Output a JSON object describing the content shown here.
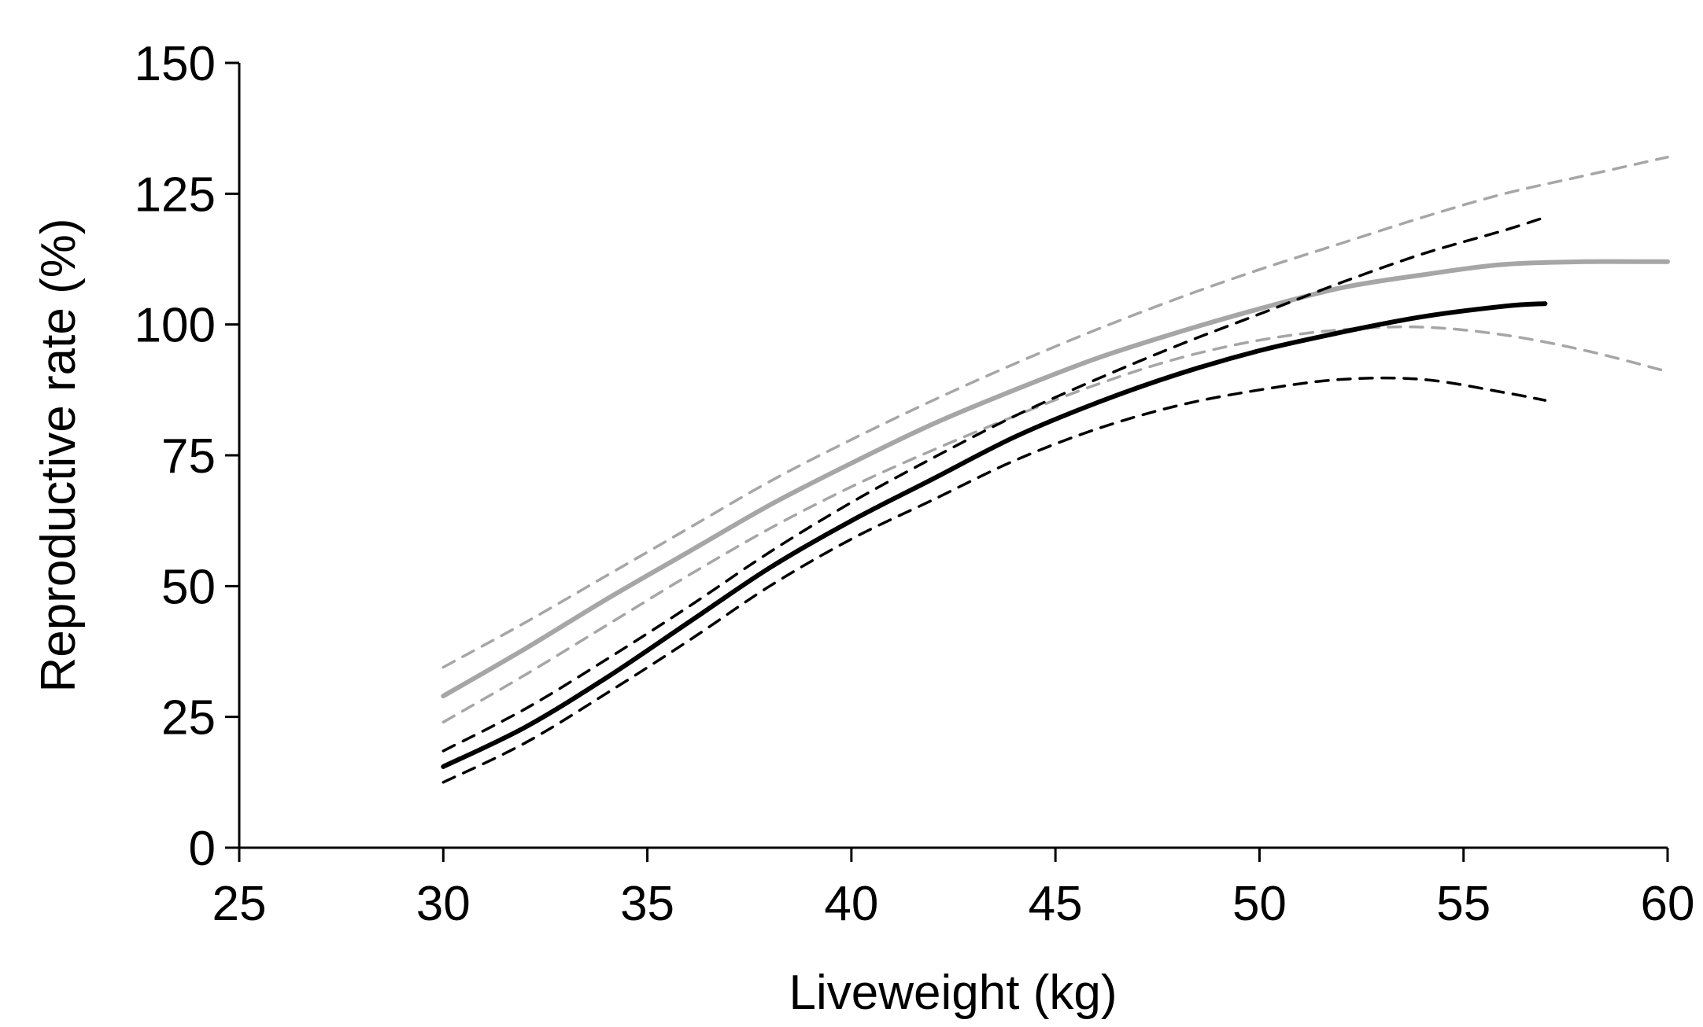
{
  "chart_data": {
    "type": "line",
    "title": "",
    "xlabel": "Liveweight  (kg)",
    "ylabel": "Reproductive rate (%)",
    "xlim": [
      25,
      60
    ],
    "ylim": [
      0,
      150
    ],
    "xticks": [
      25,
      30,
      35,
      40,
      45,
      50,
      55,
      60
    ],
    "yticks": [
      0,
      25,
      50,
      75,
      100,
      125,
      150
    ],
    "grid": false,
    "legend": "none",
    "series": [
      {
        "name": "grey-fit",
        "color": "#a6a6a6",
        "style": "solid",
        "x": [
          30,
          32,
          34,
          36,
          38,
          40,
          42,
          44,
          46,
          48,
          50,
          52,
          54,
          56,
          58,
          60
        ],
        "y": [
          29,
          38,
          47.5,
          56.5,
          65.5,
          73.5,
          81,
          87.5,
          93.5,
          98.5,
          103,
          107,
          109.5,
          111.5,
          112,
          112
        ]
      },
      {
        "name": "grey-upper-ci",
        "color": "#a6a6a6",
        "style": "dashed",
        "x": [
          30,
          32,
          34,
          36,
          38,
          40,
          42,
          44,
          46,
          48,
          50,
          52,
          54,
          56,
          58,
          60
        ],
        "y": [
          34.5,
          43,
          52,
          61,
          70,
          78,
          85.5,
          92.5,
          99,
          105,
          110.5,
          115.5,
          120.5,
          125,
          128.5,
          132
        ]
      },
      {
        "name": "grey-lower-ci",
        "color": "#a6a6a6",
        "style": "dashed",
        "x": [
          30,
          32,
          34,
          36,
          38,
          40,
          42,
          44,
          46,
          48,
          50,
          52,
          54,
          56,
          58,
          60
        ],
        "y": [
          24,
          33,
          42.5,
          52,
          61,
          69,
          76,
          82.5,
          88.5,
          93.5,
          97,
          99,
          99.5,
          98,
          95,
          91
        ]
      },
      {
        "name": "black-fit",
        "color": "#000000",
        "style": "solid",
        "x": [
          30,
          32,
          34,
          36,
          38,
          40,
          42,
          44,
          46,
          48,
          50,
          52,
          54,
          56,
          57
        ],
        "y": [
          15.5,
          23,
          32.5,
          43,
          53.5,
          62.5,
          70.5,
          78.5,
          85,
          90.5,
          95,
          98.5,
          101.5,
          103.5,
          104
        ]
      },
      {
        "name": "black-upper-ci",
        "color": "#000000",
        "style": "dashed",
        "x": [
          30,
          32,
          34,
          36,
          38,
          40,
          42,
          44,
          46,
          48,
          50,
          52,
          54,
          56,
          57
        ],
        "y": [
          18.5,
          26.5,
          36,
          46,
          56.5,
          66,
          74.5,
          82.5,
          89.5,
          96,
          102,
          108,
          113.5,
          118,
          120.5
        ]
      },
      {
        "name": "black-lower-ci",
        "color": "#000000",
        "style": "dashed",
        "x": [
          30,
          32,
          34,
          36,
          38,
          40,
          42,
          44,
          46,
          48,
          50,
          52,
          54,
          56,
          57
        ],
        "y": [
          12.5,
          20,
          29.5,
          39.5,
          50,
          59,
          66.5,
          74,
          80,
          84.5,
          87.5,
          89.5,
          89.5,
          87,
          85.5
        ]
      }
    ]
  }
}
